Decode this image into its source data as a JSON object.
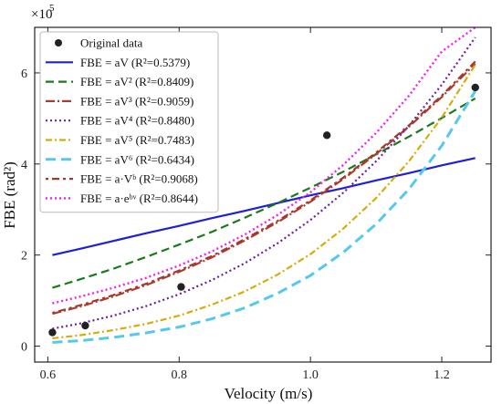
{
  "chart_data": {
    "type": "line",
    "xlabel": "Velocity (m/s)",
    "ylabel": "FBE (rad²)",
    "y_multiplier": "×10",
    "y_multiplier_exp": "5",
    "xlim": [
      0.58,
      1.275
    ],
    "ylim": [
      -0.35,
      7.0
    ],
    "xticks": [
      0.6,
      0.8,
      1.0,
      1.2
    ],
    "xtick_labels": [
      "0.6",
      "0.8",
      "1.0",
      "1.2"
    ],
    "yticks": [
      0,
      2,
      4,
      6
    ],
    "ytick_labels": [
      "0",
      "2",
      "4",
      "6"
    ],
    "grid": false,
    "legend_position": "top-left",
    "scatter": {
      "name": "Original data",
      "color": "#222222",
      "x": [
        0.607,
        0.657,
        0.803,
        1.025,
        1.251
      ],
      "y": [
        0.3,
        0.45,
        1.3,
        4.63,
        5.68
      ]
    },
    "series": [
      {
        "name": "FBE = aV (R²=0.5379)",
        "color": "#1f1fd6",
        "dash": "solid",
        "width": 2.2,
        "x": [
          0.607,
          0.65,
          0.7,
          0.75,
          0.8,
          0.85,
          0.9,
          0.95,
          1.0,
          1.05,
          1.1,
          1.15,
          1.2,
          1.251
        ],
        "y": [
          2.0,
          2.14,
          2.31,
          2.48,
          2.64,
          2.81,
          2.97,
          3.14,
          3.31,
          3.47,
          3.64,
          3.8,
          3.97,
          4.13
        ]
      },
      {
        "name": "FBE = aV² (R²=0.8409)",
        "color": "#1a7a1a",
        "dash": "9,5",
        "width": 2.2,
        "x": [
          0.607,
          0.65,
          0.7,
          0.75,
          0.8,
          0.85,
          0.9,
          0.95,
          1.0,
          1.05,
          1.1,
          1.15,
          1.2,
          1.251
        ],
        "y": [
          1.28,
          1.47,
          1.7,
          1.96,
          2.23,
          2.51,
          2.82,
          3.14,
          3.48,
          3.83,
          4.21,
          4.6,
          5.01,
          5.44
        ]
      },
      {
        "name": "FBE = aV³ (R²=0.9059)",
        "color": "#b03a2e",
        "dash": "10,3,2,3",
        "width": 2.2,
        "x": [
          0.607,
          0.65,
          0.7,
          0.75,
          0.8,
          0.85,
          0.9,
          0.95,
          1.0,
          1.05,
          1.1,
          1.15,
          1.2,
          1.251
        ],
        "y": [
          0.71,
          0.87,
          1.09,
          1.34,
          1.63,
          1.95,
          2.32,
          2.72,
          3.17,
          3.67,
          4.22,
          4.82,
          5.47,
          6.2
        ]
      },
      {
        "name": "FBE = aV⁴ (R²=0.8480)",
        "color": "#6a1fa0",
        "dash": "2,3",
        "width": 2.2,
        "x": [
          0.607,
          0.65,
          0.7,
          0.75,
          0.8,
          0.85,
          0.9,
          0.95,
          1.0,
          1.05,
          1.1,
          1.15,
          1.2,
          1.251
        ],
        "y": [
          0.38,
          0.5,
          0.67,
          0.88,
          1.14,
          1.45,
          1.82,
          2.26,
          2.77,
          3.37,
          4.06,
          4.84,
          5.74,
          6.78
        ]
      },
      {
        "name": "FBE = aV⁵ (R²=0.7483)",
        "color": "#d6ac0a",
        "dash": "7,3,2,3",
        "width": 2.2,
        "x": [
          0.607,
          0.65,
          0.7,
          0.75,
          0.8,
          0.85,
          0.9,
          0.95,
          1.0,
          1.05,
          1.1,
          1.15,
          1.2,
          1.251
        ],
        "y": [
          0.17,
          0.24,
          0.35,
          0.49,
          0.67,
          0.91,
          1.2,
          1.57,
          2.02,
          2.58,
          3.25,
          4.06,
          5.02,
          6.18
        ]
      },
      {
        "name": "FBE = aV⁶ (R²=0.6434)",
        "color": "#56c8ee",
        "dash": "11,6",
        "width": 3.0,
        "x": [
          0.607,
          0.65,
          0.7,
          0.75,
          0.8,
          0.85,
          0.9,
          0.95,
          1.0,
          1.05,
          1.1,
          1.15,
          1.2,
          1.251
        ],
        "y": [
          0.08,
          0.12,
          0.19,
          0.29,
          0.42,
          0.6,
          0.84,
          1.16,
          1.55,
          2.06,
          2.68,
          3.45,
          4.4,
          5.6
        ]
      },
      {
        "name": "FBE = a·Vᵇ (R²=0.9068)",
        "color": "#a03a30",
        "dash": "3,4,8,4",
        "width": 2.2,
        "x": [
          0.607,
          0.65,
          0.7,
          0.75,
          0.8,
          0.85,
          0.9,
          0.95,
          1.0,
          1.05,
          1.1,
          1.15,
          1.2,
          1.251
        ],
        "y": [
          0.73,
          0.9,
          1.12,
          1.37,
          1.66,
          1.98,
          2.35,
          2.75,
          3.2,
          3.7,
          4.25,
          4.85,
          5.5,
          6.25
        ]
      },
      {
        "name": "FBE = a·eᵇᵛ (R²=0.8644)",
        "color": "#ee22ee",
        "dash": "2,3",
        "width": 2.4,
        "x": [
          0.607,
          0.65,
          0.7,
          0.75,
          0.8,
          0.85,
          0.9,
          0.95,
          1.0,
          1.05,
          1.1,
          1.15,
          1.2,
          1.251
        ],
        "y": [
          0.94,
          1.09,
          1.28,
          1.5,
          1.77,
          2.08,
          2.45,
          2.88,
          3.38,
          3.98,
          4.68,
          5.5,
          6.47,
          7.0
        ]
      }
    ]
  }
}
